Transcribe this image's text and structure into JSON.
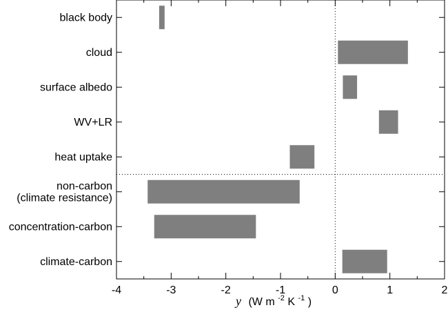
{
  "chart_data": {
    "type": "bar",
    "orientation": "horizontal-range",
    "title": "",
    "xlabel": {
      "variable": "y",
      "text_before": "(W m",
      "sup1": "-2",
      "text_mid": " K",
      "sup2": "-1",
      "text_after": ")"
    },
    "xlim": [
      -4,
      2
    ],
    "xticks": [
      -4,
      -3,
      -2,
      -1,
      0,
      1,
      2
    ],
    "grid": false,
    "reference_line_x": 0,
    "bar_color": "#7f7f7f",
    "categories": [
      {
        "label": "black body",
        "low": -3.22,
        "high": -3.12
      },
      {
        "label": "cloud",
        "low": 0.05,
        "high": 1.33
      },
      {
        "label": "surface albedo",
        "low": 0.14,
        "high": 0.4
      },
      {
        "label": "WV+LR",
        "low": 0.8,
        "high": 1.15
      },
      {
        "label": "heat uptake",
        "low": -0.83,
        "high": -0.38
      },
      {
        "label": "non-carbon\n(climate resistance)",
        "low": -3.43,
        "high": -0.65
      },
      {
        "label": "concentration-carbon",
        "low": -3.31,
        "high": -1.45
      },
      {
        "label": "climate-carbon",
        "low": 0.13,
        "high": 0.95
      }
    ],
    "separator_after_index": 4
  }
}
